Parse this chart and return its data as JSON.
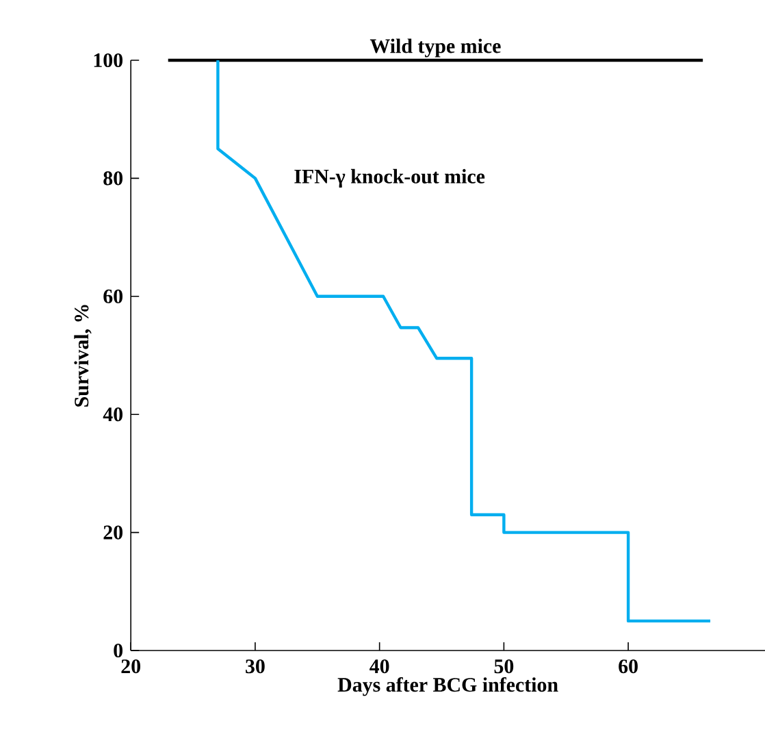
{
  "chart_data": {
    "type": "line",
    "xlabel": "Days after BCG infection",
    "ylabel": "Survival, %",
    "xlim": [
      20,
      71
    ],
    "xticks": [
      20,
      30,
      40,
      50,
      60
    ],
    "ylim": [
      0,
      100
    ],
    "yticks": [
      0,
      20,
      40,
      60,
      80,
      100
    ],
    "grid": false,
    "legend": false,
    "marker": "none",
    "line_style": "solid",
    "series": [
      {
        "name": "Wild type mice",
        "color": "#000000",
        "x": [
          23,
          66
        ],
        "values": [
          100,
          100
        ]
      },
      {
        "name": "IFN-γ knock-out mice",
        "color": "#00aeef",
        "x": [
          27,
          27,
          30,
          35,
          40.3,
          41.7,
          43.1,
          44.6,
          47.4,
          47.4,
          50,
          50,
          60,
          60,
          66.6
        ],
        "values": [
          100,
          85,
          80,
          60,
          60,
          54.7,
          54.7,
          49.5,
          49.5,
          23,
          23,
          20,
          20,
          5,
          5
        ]
      }
    ]
  }
}
